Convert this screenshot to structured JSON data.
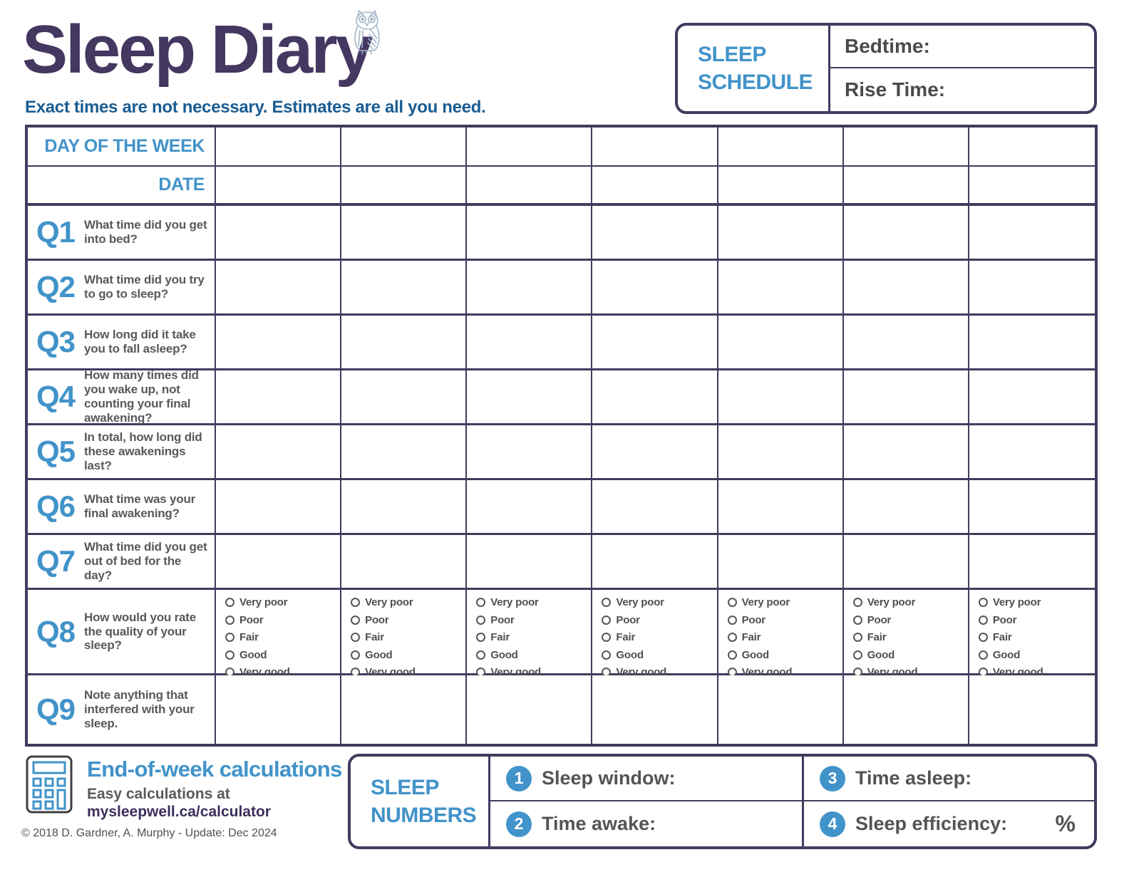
{
  "page": {
    "title": "Sleep Diary",
    "subtitle": "Exact times are not necessary. Estimates are all you need."
  },
  "sleep_schedule": {
    "heading": "SLEEP SCHEDULE",
    "rows": [
      {
        "label": "Bedtime:",
        "value": ""
      },
      {
        "label": "Rise Time:",
        "value": ""
      }
    ]
  },
  "diary": {
    "days": 7,
    "header_rows": [
      {
        "label": "DAY OF THE WEEK"
      },
      {
        "label": "DATE"
      }
    ],
    "questions": [
      {
        "id": "Q1",
        "text": "What time did you get into bed?"
      },
      {
        "id": "Q2",
        "text": "What time did you try to go to sleep?"
      },
      {
        "id": "Q3",
        "text": "How long did it take you to fall asleep?"
      },
      {
        "id": "Q4",
        "text": "How many times did you wake up, not counting your final awakening?"
      },
      {
        "id": "Q5",
        "text": "In total, how long did these awakenings last?"
      },
      {
        "id": "Q6",
        "text": "What time was your final awakening?"
      },
      {
        "id": "Q7",
        "text": "What time did you get out of bed for the day?"
      },
      {
        "id": "Q8",
        "text": "How would you rate the quality of your sleep?",
        "options": [
          "Very poor",
          "Poor",
          "Fair",
          "Good",
          "Very good"
        ]
      },
      {
        "id": "Q9",
        "text": "Note anything that interfered with your sleep."
      }
    ]
  },
  "footer": {
    "end_of_week": {
      "title": "End-of-week calculations",
      "subtitle": "Easy calculations at",
      "link": "mysleepwell.ca/calculator"
    },
    "copyright": "© 2018 D. Gardner, A. Murphy - Update: Dec 2024",
    "sleep_numbers": {
      "heading": "SLEEP NUMBERS",
      "items": [
        {
          "num": "1",
          "label": "Sleep window:"
        },
        {
          "num": "2",
          "label": "Time awake:"
        },
        {
          "num": "3",
          "label": "Time asleep:"
        },
        {
          "num": "4",
          "label": "Sleep efficiency:",
          "suffix": "%"
        }
      ]
    }
  },
  "icons": {
    "owl": "owl-icon",
    "calculator": "calculator-icon",
    "radio": "radio-circle-icon"
  },
  "colors": {
    "title_purple": "#443760",
    "border_purple": "#443a5e",
    "accent_blue": "#4193c9",
    "subtitle_blue": "#1a5c92",
    "text_gray": "#58595b",
    "link_purple": "#3c2f5c"
  }
}
